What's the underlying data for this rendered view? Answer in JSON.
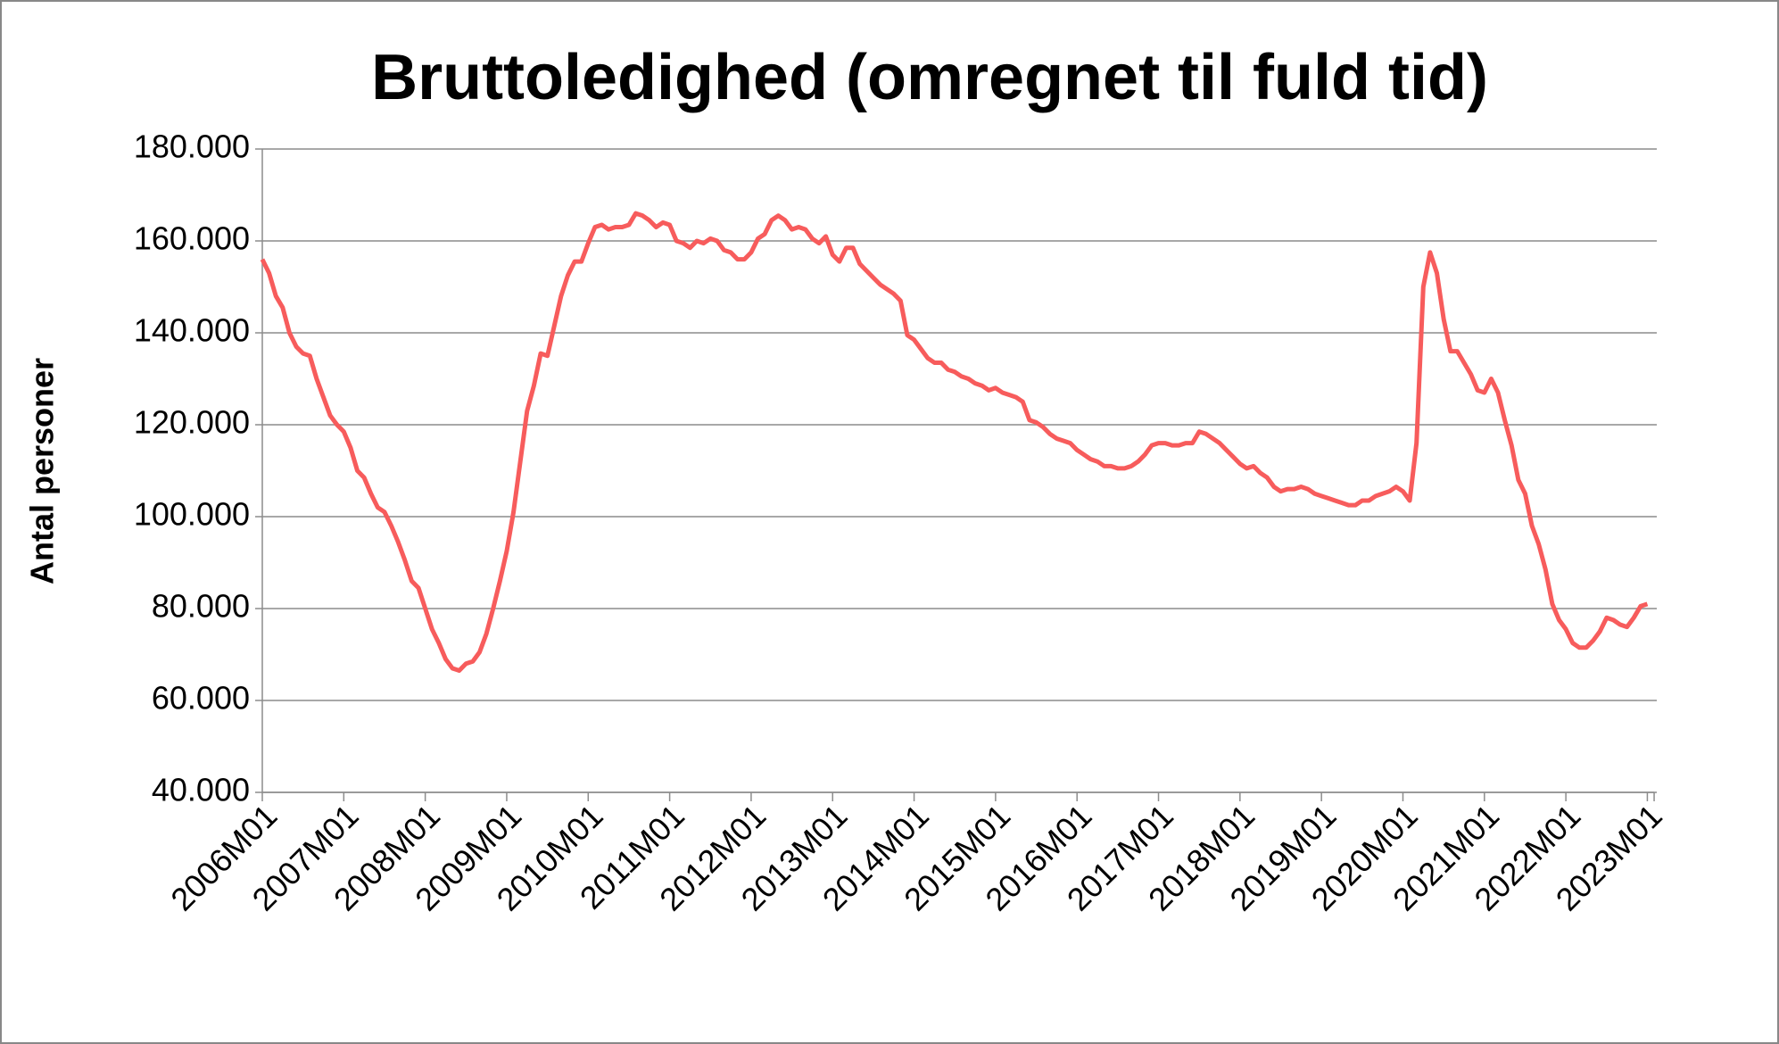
{
  "chart_data": {
    "type": "line",
    "title": "Bruttoledighed (omregnet til fuld tid)",
    "y_label": "Antal personer",
    "categories": [
      "2006M01",
      null,
      null,
      null,
      null,
      null,
      null,
      null,
      null,
      null,
      null,
      null,
      "2007M01",
      null,
      null,
      null,
      null,
      null,
      null,
      null,
      null,
      null,
      null,
      null,
      "2008M01",
      null,
      null,
      null,
      null,
      null,
      null,
      null,
      null,
      null,
      null,
      null,
      "2009M01",
      null,
      null,
      null,
      null,
      null,
      null,
      null,
      null,
      null,
      null,
      null,
      "2010M01",
      null,
      null,
      null,
      null,
      null,
      null,
      null,
      null,
      null,
      null,
      null,
      "2011M01",
      null,
      null,
      null,
      null,
      null,
      null,
      null,
      null,
      null,
      null,
      null,
      "2012M01",
      null,
      null,
      null,
      null,
      null,
      null,
      null,
      null,
      null,
      null,
      null,
      "2013M01",
      null,
      null,
      null,
      null,
      null,
      null,
      null,
      null,
      null,
      null,
      null,
      "2014M01",
      null,
      null,
      null,
      null,
      null,
      null,
      null,
      null,
      null,
      null,
      null,
      "2015M01",
      null,
      null,
      null,
      null,
      null,
      null,
      null,
      null,
      null,
      null,
      null,
      "2016M01",
      null,
      null,
      null,
      null,
      null,
      null,
      null,
      null,
      null,
      null,
      null,
      "2017M01",
      null,
      null,
      null,
      null,
      null,
      null,
      null,
      null,
      null,
      null,
      null,
      "2018M01",
      null,
      null,
      null,
      null,
      null,
      null,
      null,
      null,
      null,
      null,
      null,
      "2019M01",
      null,
      null,
      null,
      null,
      null,
      null,
      null,
      null,
      null,
      null,
      null,
      "2020M01",
      null,
      null,
      null,
      null,
      null,
      null,
      null,
      null,
      null,
      null,
      null,
      "2021M01",
      null,
      null,
      null,
      null,
      null,
      null,
      null,
      null,
      null,
      null,
      null,
      "2022M01",
      null,
      null,
      null,
      null,
      null,
      null,
      null,
      null,
      null,
      null,
      null,
      "2023M01"
    ],
    "series": [
      {
        "color": "#f75c5c",
        "values": [
          156000,
          153000,
          148000,
          145500,
          140000,
          137000,
          135500,
          135000,
          130000,
          126000,
          122000,
          120000,
          118500,
          115000,
          110000,
          108500,
          105000,
          102000,
          101000,
          98000,
          94500,
          90500,
          86000,
          84500,
          80000,
          75500,
          72500,
          69000,
          67000,
          66500,
          68000,
          68500,
          70500,
          74500,
          80000,
          86000,
          92500,
          101000,
          112000,
          123000,
          128500,
          135500,
          135000,
          141500,
          148000,
          152500,
          155500,
          155500,
          159500,
          163000,
          163500,
          162500,
          163000,
          163000,
          163500,
          166000,
          165500,
          164500,
          163000,
          164000,
          163500,
          160000,
          159500,
          158500,
          160000,
          159500,
          160500,
          160000,
          158000,
          157500,
          156000,
          156000,
          157500,
          160500,
          161500,
          164500,
          165500,
          164500,
          162500,
          163000,
          162500,
          160500,
          159500,
          161000,
          157000,
          155500,
          158500,
          158500,
          155000,
          153500,
          152000,
          150500,
          149500,
          148500,
          147000,
          139500,
          138500,
          136500,
          134500,
          133500,
          133500,
          132000,
          131500,
          130500,
          130000,
          129000,
          128500,
          127500,
          128000,
          127000,
          126500,
          126000,
          125000,
          121000,
          120500,
          119500,
          118000,
          117000,
          116500,
          116000,
          114500,
          113500,
          112500,
          112000,
          111000,
          111000,
          110500,
          110500,
          111000,
          112000,
          113500,
          115500,
          116000,
          116000,
          115500,
          115500,
          116000,
          116000,
          118500,
          118000,
          117000,
          116000,
          114500,
          113000,
          111500,
          110500,
          111000,
          109500,
          108500,
          106500,
          105500,
          106000,
          106000,
          106500,
          106000,
          105000,
          104500,
          104000,
          103500,
          103000,
          102500,
          102500,
          103500,
          103500,
          104500,
          105000,
          105500,
          106500,
          105500,
          103500,
          116000,
          150000,
          157500,
          153000,
          143000,
          136000,
          136000,
          133500,
          131000,
          127500,
          127000,
          130000,
          127000,
          121000,
          115500,
          108000,
          105000,
          98000,
          94000,
          88500,
          81000,
          77500,
          75500,
          72500,
          71500,
          71500,
          73000,
          75000,
          78000,
          77500,
          76500,
          76000,
          78000,
          80500,
          81000
        ]
      }
    ],
    "ylim": [
      40000,
      180000
    ],
    "yticks": [
      {
        "value": 40000,
        "label": "40.000"
      },
      {
        "value": 60000,
        "label": "60.000"
      },
      {
        "value": 80000,
        "label": "80.000"
      },
      {
        "value": 100000,
        "label": "100.000"
      },
      {
        "value": 120000,
        "label": "120.000"
      },
      {
        "value": 140000,
        "label": "140.000"
      },
      {
        "value": 160000,
        "label": "160.000"
      },
      {
        "value": 180000,
        "label": "180.000"
      }
    ],
    "grid": true
  }
}
